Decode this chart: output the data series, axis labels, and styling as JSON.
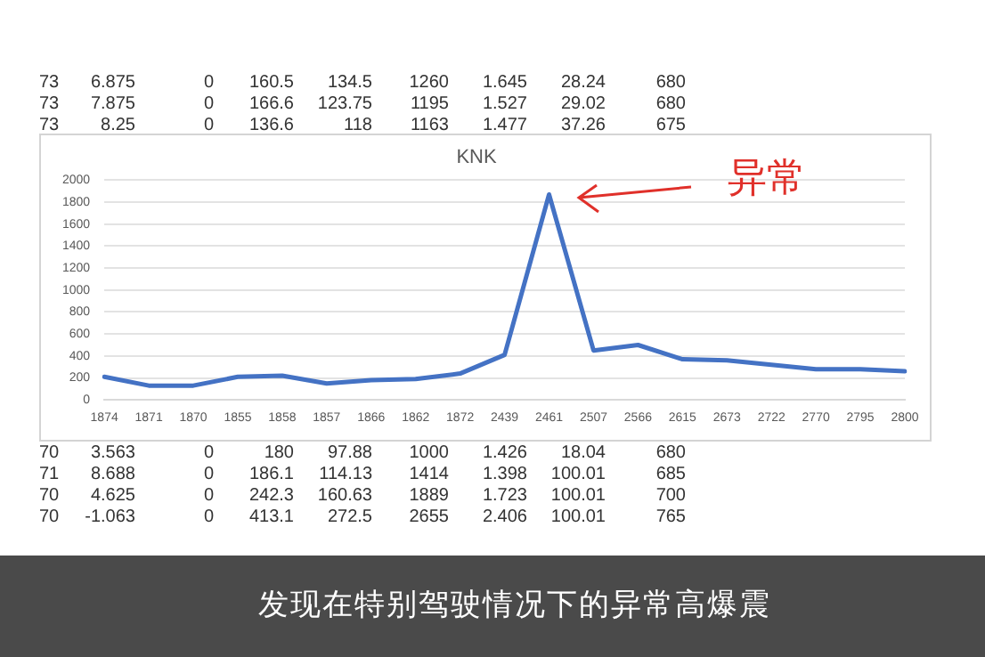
{
  "chart_data": {
    "type": "line",
    "title": "KNK",
    "categories": [
      "1874",
      "1871",
      "1870",
      "1855",
      "1858",
      "1857",
      "1866",
      "1862",
      "1872",
      "2439",
      "2461",
      "2507",
      "2566",
      "2615",
      "2673",
      "2722",
      "2770",
      "2795",
      "2800"
    ],
    "series": [
      {
        "color": "#4472c4",
        "values": [
          210,
          130,
          130,
          210,
          220,
          150,
          180,
          190,
          240,
          410,
          1870,
          450,
          500,
          370,
          360,
          320,
          280,
          280,
          260
        ]
      }
    ],
    "ylim": [
      0,
      2000
    ],
    "yticks": [
      0,
      200,
      400,
      600,
      800,
      1000,
      1200,
      1400,
      1600,
      1800,
      2000
    ],
    "grid": "y",
    "legend": false,
    "marker": "none",
    "line_style": "solid",
    "annotations": [
      "73 6.875 0 160.5 134.5 1260 1.645 28.24 680",
      "73 7.875 0 166.6 123.75 1195 1.527 29.02 680",
      "73 8.25 0 136.6 118 1163 1.477 37.26 675",
      "70 3.563 0 180 97.88 1000 1.426 18.04 680",
      "71 8.688 0 186.1 114.13 1414 1.398 100.01 685",
      "70 4.625 0 242.3 160.63 1889 1.723 100.01 700",
      "70 -1.063 0 413.1 272.5 2655 2.406 100.01 765",
      "发现在特别驾驶情况下的异常高爆震",
      "异常"
    ]
  }
}
